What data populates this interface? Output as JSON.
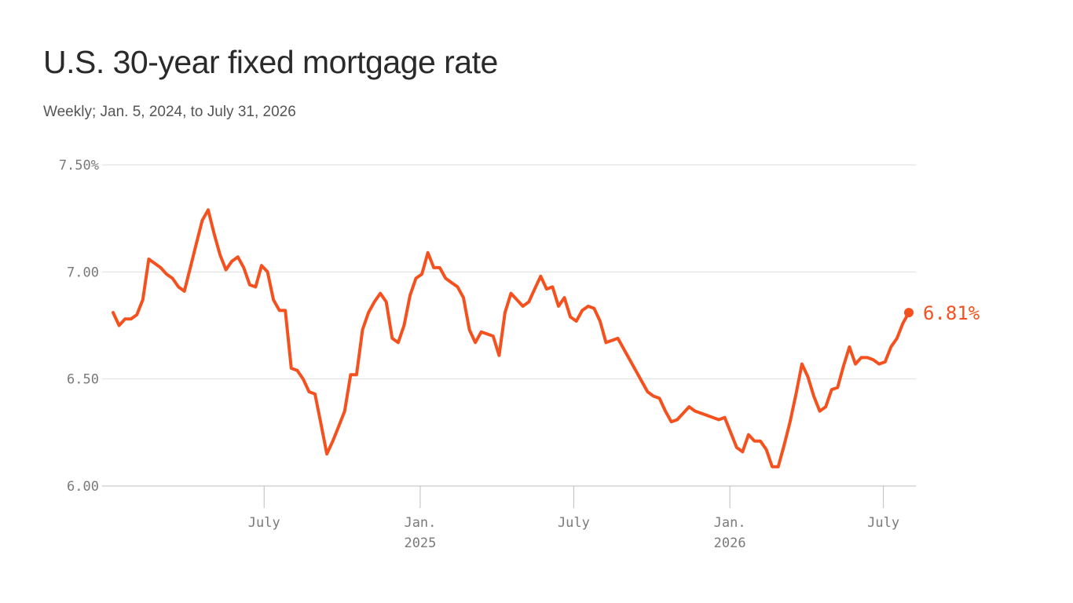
{
  "chart_data": {
    "type": "line",
    "title": "U.S. 30-year fixed mortgage rate",
    "subtitle": "Weekly; Jan. 5, 2024, to July 31, 2026",
    "ylim": [
      6.0,
      7.5
    ],
    "y_ticks": [
      {
        "value": 7.5,
        "label": "7.50%"
      },
      {
        "value": 7.0,
        "label": "7.00"
      },
      {
        "value": 6.5,
        "label": "6.50"
      },
      {
        "value": 6.0,
        "label": "6.00"
      }
    ],
    "xlim": [
      "2024-01-05",
      "2026-07-31"
    ],
    "x_ticks": [
      {
        "date": "2024-07-01",
        "label": "July",
        "sublabel": ""
      },
      {
        "date": "2025-01-01",
        "label": "Jan.",
        "sublabel": "2025"
      },
      {
        "date": "2025-07-01",
        "label": "July",
        "sublabel": ""
      },
      {
        "date": "2026-01-01",
        "label": "Jan.",
        "sublabel": "2026"
      },
      {
        "date": "2026-07-01",
        "label": "July",
        "sublabel": ""
      }
    ],
    "grid": true,
    "line_color": "#f4511e",
    "end_label": "6.81%",
    "series": [
      {
        "x": [
          "2024-01-05",
          "2024-01-12",
          "2024-01-19",
          "2024-01-26",
          "2024-02-02",
          "2024-02-09",
          "2024-02-16",
          "2024-02-23",
          "2024-03-01",
          "2024-03-08",
          "2024-03-15",
          "2024-03-22",
          "2024-03-29",
          "2024-04-05",
          "2024-04-12",
          "2024-04-19",
          "2024-04-26",
          "2024-05-03",
          "2024-05-10",
          "2024-05-17",
          "2024-05-24",
          "2024-05-31",
          "2024-06-07",
          "2024-06-14",
          "2024-06-21",
          "2024-06-28",
          "2024-07-05",
          "2024-07-12",
          "2024-07-19",
          "2024-07-26",
          "2024-08-02",
          "2024-08-09",
          "2024-08-16",
          "2024-08-23",
          "2024-08-30",
          "2024-09-06",
          "2024-09-13",
          "2024-09-20",
          "2024-09-27",
          "2024-10-04",
          "2024-10-11",
          "2024-10-18",
          "2024-10-25",
          "2024-11-01",
          "2024-11-08",
          "2024-11-15",
          "2024-11-22",
          "2024-11-29",
          "2024-12-06",
          "2024-12-13",
          "2024-12-20",
          "2024-12-27",
          "2025-01-03",
          "2025-01-10",
          "2025-01-17",
          "2025-01-24",
          "2025-01-31",
          "2025-02-07",
          "2025-02-14",
          "2025-02-21",
          "2025-02-28",
          "2025-03-07",
          "2025-03-14",
          "2025-03-21",
          "2025-03-28",
          "2025-04-04",
          "2025-04-11",
          "2025-04-18",
          "2025-04-25",
          "2025-05-02",
          "2025-05-09",
          "2025-05-16",
          "2025-05-23",
          "2025-05-30",
          "2025-06-06",
          "2025-06-13",
          "2025-06-20",
          "2025-06-27",
          "2025-07-04",
          "2025-07-11",
          "2025-07-18",
          "2025-07-25",
          "2025-08-01",
          "2025-08-08",
          "2025-08-15",
          "2025-08-22",
          "2025-08-29",
          "2025-09-05",
          "2025-09-12",
          "2025-09-19",
          "2025-09-26",
          "2025-10-03",
          "2025-10-10",
          "2025-10-17",
          "2025-10-24",
          "2025-10-31",
          "2025-11-07",
          "2025-11-14",
          "2025-11-21",
          "2025-11-28",
          "2025-12-05",
          "2025-12-12",
          "2025-12-19",
          "2025-12-26",
          "2026-01-02",
          "2026-01-09",
          "2026-01-16",
          "2026-01-23",
          "2026-01-30",
          "2026-02-06",
          "2026-02-13",
          "2026-02-20",
          "2026-02-27",
          "2026-03-06",
          "2026-03-13",
          "2026-03-20",
          "2026-03-27",
          "2026-04-03",
          "2026-04-10",
          "2026-04-17",
          "2026-04-24",
          "2026-05-01",
          "2026-05-08",
          "2026-05-15",
          "2026-05-22",
          "2026-05-29",
          "2026-06-05",
          "2026-06-12",
          "2026-06-19",
          "2026-06-26",
          "2026-07-03",
          "2026-07-10",
          "2026-07-17",
          "2026-07-24",
          "2026-07-31"
        ],
        "y": [
          6.81,
          6.75,
          6.78,
          6.78,
          6.8,
          6.87,
          7.06,
          7.04,
          7.02,
          6.99,
          6.97,
          6.93,
          6.91,
          7.02,
          7.13,
          7.24,
          7.29,
          7.18,
          7.08,
          7.01,
          7.05,
          7.07,
          7.02,
          6.94,
          6.93,
          7.03,
          7.0,
          6.87,
          6.82,
          6.82,
          6.55,
          6.54,
          6.5,
          6.44,
          6.43,
          6.29,
          6.15,
          6.21,
          6.28,
          6.35,
          6.52,
          6.52,
          6.73,
          6.81,
          6.86,
          6.9,
          6.86,
          6.69,
          6.67,
          6.75,
          6.89,
          6.97,
          6.99,
          7.09,
          7.02,
          7.02,
          6.97,
          6.95,
          6.93,
          6.88,
          6.73,
          6.67,
          6.72,
          6.71,
          6.7,
          6.61,
          6.81,
          6.9,
          6.87,
          6.84,
          6.86,
          6.92,
          6.98,
          6.92,
          6.93,
          6.84,
          6.88,
          6.79,
          6.77,
          6.82,
          6.84,
          6.83,
          6.77,
          6.67,
          6.68,
          6.69,
          6.64,
          6.59,
          6.54,
          6.49,
          6.44,
          6.42,
          6.41,
          6.35,
          6.3,
          6.31,
          6.34,
          6.37,
          6.35,
          6.34,
          6.33,
          6.32,
          6.31,
          6.32,
          6.25,
          6.18,
          6.16,
          6.24,
          6.21,
          6.21,
          6.17,
          6.09,
          6.09,
          6.19,
          6.3,
          6.43,
          6.57,
          6.51,
          6.42,
          6.35,
          6.37,
          6.45,
          6.46,
          6.56,
          6.65,
          6.57,
          6.6,
          6.6,
          6.59,
          6.57,
          6.58,
          6.65,
          6.69,
          6.76,
          6.81
        ]
      }
    ]
  }
}
